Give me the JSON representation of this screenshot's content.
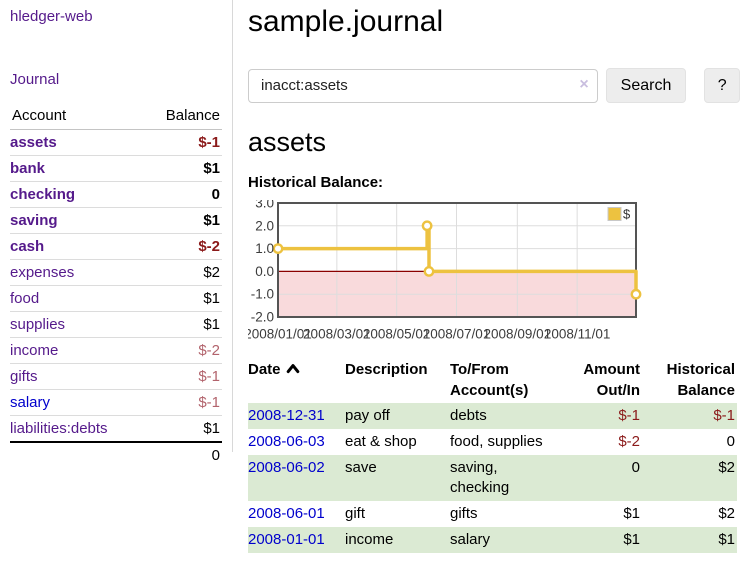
{
  "app": {
    "brand": "hledger-web",
    "nav_journal": "Journal"
  },
  "sidebar": {
    "accounts_header": {
      "account": "Account",
      "balance": "Balance"
    },
    "accounts": [
      {
        "name": "assets",
        "indent": 1,
        "bold": true,
        "balance": "$-1",
        "balance_tone": "neg-strong",
        "link_tone": null
      },
      {
        "name": "bank",
        "indent": 2,
        "bold": true,
        "balance": "$1",
        "balance_tone": null,
        "link_tone": null
      },
      {
        "name": "checking",
        "indent": 3,
        "bold": true,
        "balance": "0",
        "balance_tone": null,
        "link_tone": null
      },
      {
        "name": "saving",
        "indent": 3,
        "bold": true,
        "balance": "$1",
        "balance_tone": null,
        "link_tone": null
      },
      {
        "name": "cash",
        "indent": 2,
        "bold": true,
        "balance": "$-2",
        "balance_tone": "neg-strong",
        "link_tone": null
      },
      {
        "name": "expenses",
        "indent": 1,
        "bold": false,
        "balance": "$2",
        "balance_tone": null,
        "link_tone": null
      },
      {
        "name": "food",
        "indent": 2,
        "bold": false,
        "balance": "$1",
        "balance_tone": null,
        "link_tone": null
      },
      {
        "name": "supplies",
        "indent": 2,
        "bold": false,
        "balance": "$1",
        "balance_tone": null,
        "link_tone": null
      },
      {
        "name": "income",
        "indent": 1,
        "bold": false,
        "balance": "$-2",
        "balance_tone": "neg-soft",
        "link_tone": null
      },
      {
        "name": "gifts",
        "indent": 2,
        "bold": false,
        "balance": "$-1",
        "balance_tone": "neg-soft",
        "link_tone": null
      },
      {
        "name": "salary",
        "indent": 2,
        "bold": false,
        "balance": "$-1",
        "balance_tone": "neg-soft",
        "link_tone": "blue"
      },
      {
        "name": "liabilities:debts",
        "indent": 1,
        "bold": false,
        "balance": "$1",
        "balance_tone": null,
        "link_tone": null
      }
    ],
    "total": "0"
  },
  "header": {
    "title": "sample.journal"
  },
  "search": {
    "query": "inacct:assets",
    "clear_icon": "×",
    "search_label": "Search",
    "help_label": "?"
  },
  "account_page": {
    "title": "assets",
    "chart_label": "Historical Balance:"
  },
  "chart_data": {
    "type": "line",
    "title": "Historical Balance:",
    "step": true,
    "series": [
      {
        "name": "$",
        "color": "#edc240",
        "points": [
          [
            "2008-01-01",
            1
          ],
          [
            "2008-06-01",
            2
          ],
          [
            "2008-06-03",
            0
          ],
          [
            "2008-12-31",
            -1
          ]
        ]
      }
    ],
    "x_range": [
      "2008/01/01",
      "2008/12/31"
    ],
    "x_ticks": [
      "2008/01/01",
      "2008/03/01",
      "2008/05/01",
      "2008/07/01",
      "2008/09/01",
      "2008/11/01"
    ],
    "y_ticks": [
      3.0,
      2.0,
      1.0,
      0.0,
      -1.0,
      -2.0
    ],
    "ylim": [
      -2,
      3
    ],
    "grid": true,
    "legend": {
      "position": "top-right",
      "label": "$"
    },
    "negative_region_color": "#f9dadc",
    "zero_line_color": "#8b0000",
    "border_color": "#545454",
    "gridline_color": "#dddddd"
  },
  "register": {
    "columns": [
      {
        "label": "Date",
        "sort": "ascending"
      },
      {
        "label": "Description"
      },
      {
        "label": "To/From Account(s)"
      },
      {
        "label": "Amount Out/In"
      },
      {
        "label": "Historical Balance"
      }
    ],
    "rows": [
      {
        "date": "2008-12-31",
        "description": "pay off",
        "accounts": "debts",
        "amount": "$-1",
        "amount_negative": true,
        "balance": "$-1",
        "balance_negative": true
      },
      {
        "date": "2008-06-03",
        "description": "eat & shop",
        "accounts": "food, supplies",
        "amount": "$-2",
        "amount_negative": true,
        "balance": "0",
        "balance_negative": false
      },
      {
        "date": "2008-06-02",
        "description": "save",
        "accounts": "saving, checking",
        "amount": "0",
        "amount_negative": false,
        "balance": "$2",
        "balance_negative": false
      },
      {
        "date": "2008-06-01",
        "description": "gift",
        "accounts": "gifts",
        "amount": "$1",
        "amount_negative": false,
        "balance": "$2",
        "balance_negative": false
      },
      {
        "date": "2008-01-01",
        "description": "income",
        "accounts": "salary",
        "amount": "$1",
        "amount_negative": false,
        "balance": "$1",
        "balance_negative": false
      }
    ]
  },
  "colors": {
    "accent_purple": "#551a8b",
    "link_blue": "#0000cc",
    "negative_dark": "#8b1a1a",
    "negative_muted": "#b2636c",
    "row_stripe_green": "#dbead3",
    "chart_line_gold": "#edc240",
    "chart_negative_fill": "#f9dadc",
    "chart_zero_line": "#8b0000"
  }
}
